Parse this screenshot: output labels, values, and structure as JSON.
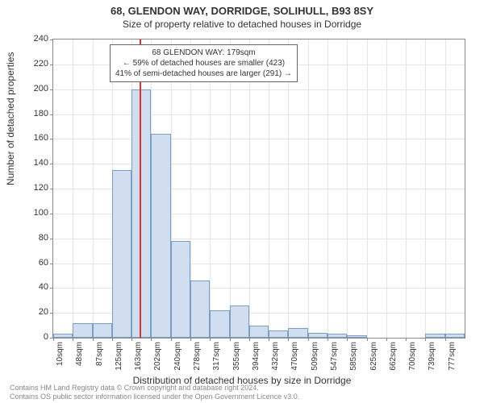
{
  "chart": {
    "type": "histogram",
    "title_main": "68, GLENDON WAY, DORRIDGE, SOLIHULL, B93 8SY",
    "title_sub": "Size of property relative to detached houses in Dorridge",
    "y_axis_label": "Number of detached properties",
    "x_axis_label": "Distribution of detached houses by size in Dorridge",
    "ylim": [
      0,
      240
    ],
    "ytick_step": 20,
    "x_categories": [
      "10sqm",
      "48sqm",
      "87sqm",
      "125sqm",
      "163sqm",
      "202sqm",
      "240sqm",
      "278sqm",
      "317sqm",
      "355sqm",
      "394sqm",
      "432sqm",
      "470sqm",
      "509sqm",
      "547sqm",
      "585sqm",
      "625sqm",
      "662sqm",
      "700sqm",
      "739sqm",
      "777sqm"
    ],
    "values": [
      3,
      12,
      12,
      135,
      200,
      164,
      78,
      46,
      22,
      26,
      10,
      6,
      8,
      4,
      3,
      2,
      0,
      0,
      0,
      3,
      3
    ],
    "bar_fill": "#d0def0",
    "bar_border": "#7a9dc8",
    "background_color": "#ffffff",
    "grid_color": "#e5e5e5",
    "axis_color": "#888888",
    "ref_line_color": "#e03030",
    "ref_line_index": 4.4,
    "annotation": {
      "line1": "68 GLENDON WAY: 179sqm",
      "line2": "← 59% of detached houses are smaller (423)",
      "line3": "41% of semi-detached houses are larger (291) →"
    },
    "footer_line1": "Contains HM Land Registry data © Crown copyright and database right 2024.",
    "footer_line2": "Contains OS public sector information licensed under the Open Government Licence v3.0.",
    "title_fontsize": 13,
    "subtitle_fontsize": 12,
    "label_fontsize": 12,
    "tick_fontsize": 11
  }
}
